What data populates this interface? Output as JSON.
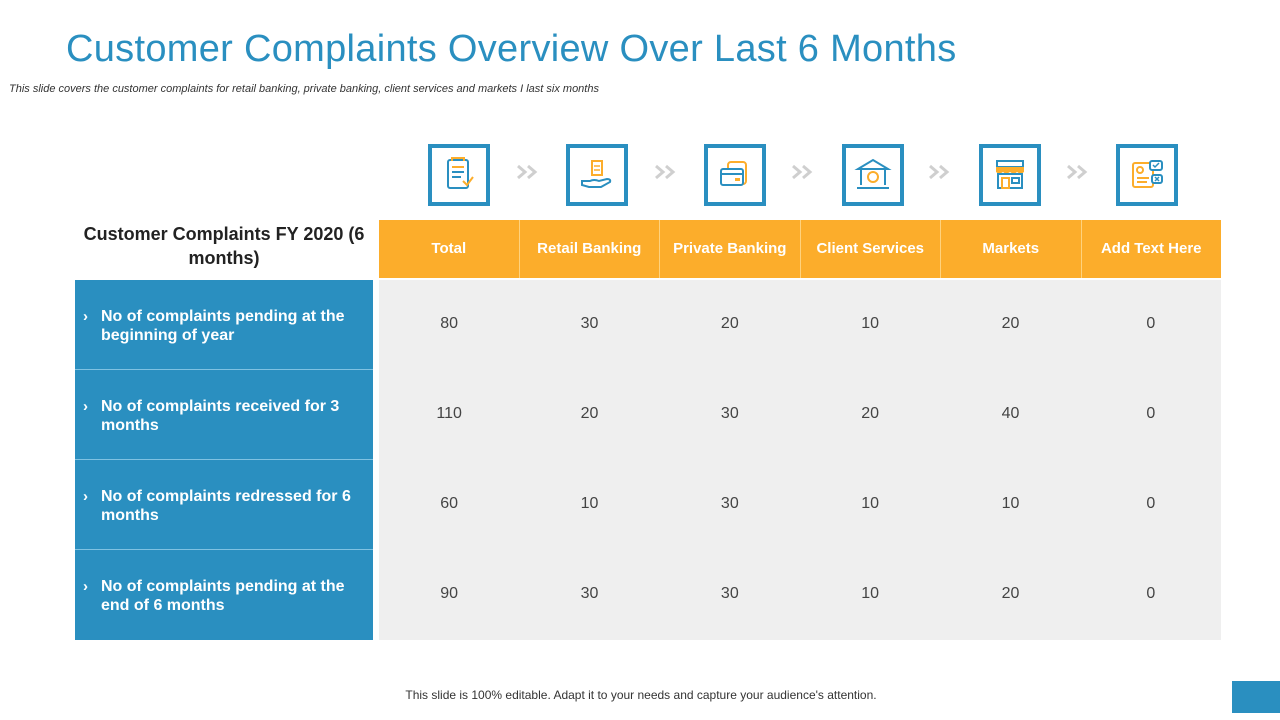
{
  "slide": {
    "title": "Customer Complaints Overview Over Last 6 Months",
    "subtitle": "This slide covers the customer complaints for retail banking, private banking, client services and markets I last six months",
    "footer": "This slide is 100% editable. Adapt it to your needs and capture your audience's attention."
  },
  "icons": [
    "document-checklist-icon",
    "hand-holding-money-icon",
    "wallet-cards-icon",
    "bank-building-icon",
    "market-store-icon",
    "feedback-report-icon"
  ],
  "table": {
    "title": "Customer Complaints FY 2020 (6 months)",
    "headers": [
      "Total",
      "Retail Banking",
      "Private Banking",
      "Client Services",
      "Markets",
      "Add Text Here"
    ],
    "rows": [
      {
        "label": "No of complaints pending at the beginning of year",
        "values": [
          "80",
          "30",
          "20",
          "10",
          "20",
          "0"
        ]
      },
      {
        "label": "No of complaints received for 3 months",
        "values": [
          "110",
          "20",
          "30",
          "20",
          "40",
          "0"
        ]
      },
      {
        "label": "No of complaints redressed for 6 months",
        "values": [
          "60",
          "10",
          "30",
          "10",
          "10",
          "0"
        ]
      },
      {
        "label": "No of complaints pending at the end of 6 months",
        "values": [
          "90",
          "30",
          "30",
          "10",
          "20",
          "0"
        ]
      }
    ]
  },
  "colors": {
    "accent_blue": "#2a8fc0",
    "accent_orange": "#fcad2b",
    "cell_gray": "#efefef"
  }
}
